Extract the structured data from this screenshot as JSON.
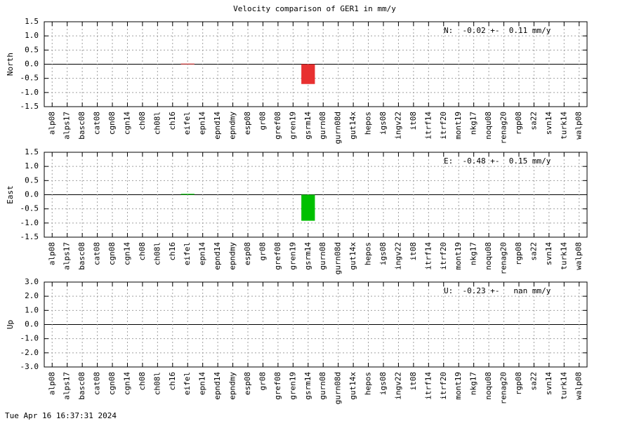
{
  "title": "Velocity comparison of GER1 in mm/y",
  "footer": "Tue Apr 16 16:37:31 2024",
  "chart_data": [
    {
      "type": "bar",
      "ylabel": "North",
      "annotation": "N:  -0.02 +-  0.11 mm/y",
      "categories": [
        "alp08",
        "alps17",
        "basc08",
        "cat08",
        "cgn08",
        "cgn14",
        "ch08",
        "ch08l",
        "ch16",
        "eifel",
        "epn14",
        "epnd14",
        "epndmy",
        "esp08",
        "gr08",
        "gref08",
        "gren19",
        "gsrm14",
        "gurn08",
        "gurn08d",
        "gut14x",
        "hepos",
        "igs08",
        "ingv22",
        "it08",
        "itrf14",
        "itrf20",
        "mont19",
        "nkg17",
        "noqu08",
        "renag20",
        "rgp08",
        "sa22",
        "svn14",
        "turk14",
        "walp08"
      ],
      "values": [
        null,
        null,
        null,
        null,
        null,
        null,
        null,
        null,
        null,
        0.02,
        null,
        null,
        null,
        null,
        null,
        null,
        null,
        -0.7,
        null,
        null,
        null,
        null,
        null,
        null,
        null,
        null,
        null,
        null,
        null,
        null,
        null,
        null,
        null,
        null,
        null,
        null
      ],
      "color": "#e83030",
      "ylim": [
        -1.5,
        1.5
      ],
      "yticks": [
        -1.5,
        {
          "value": -1,
          "label": "-1.0"
        },
        -0.5,
        {
          "value": 0,
          "label": "0.0"
        },
        0.5,
        {
          "value": 1,
          "label": "1.0"
        },
        1.5
      ],
      "grid": true
    },
    {
      "type": "bar",
      "ylabel": "East",
      "annotation": "E:  -0.48 +-  0.15 mm/y",
      "categories": [
        "alp08",
        "alps17",
        "basc08",
        "cat08",
        "cgn08",
        "cgn14",
        "ch08",
        "ch08l",
        "ch16",
        "eifel",
        "epn14",
        "epnd14",
        "epndmy",
        "esp08",
        "gr08",
        "gref08",
        "gren19",
        "gsrm14",
        "gurn08",
        "gurn08d",
        "gut14x",
        "hepos",
        "igs08",
        "ingv22",
        "it08",
        "itrf14",
        "itrf20",
        "mont19",
        "nkg17",
        "noqu08",
        "renag20",
        "rgp08",
        "sa22",
        "svn14",
        "turk14",
        "walp08"
      ],
      "values": [
        null,
        null,
        null,
        null,
        null,
        null,
        null,
        null,
        null,
        0.03,
        null,
        null,
        null,
        null,
        null,
        null,
        null,
        -0.92,
        null,
        null,
        null,
        null,
        null,
        null,
        null,
        null,
        null,
        null,
        null,
        null,
        null,
        null,
        null,
        null,
        null,
        null
      ],
      "color": "#00c000",
      "ylim": [
        -1.5,
        1.5
      ],
      "yticks": [
        -1.5,
        {
          "value": -1,
          "label": "-1.0"
        },
        -0.5,
        {
          "value": 0,
          "label": "0.0"
        },
        0.5,
        {
          "value": 1,
          "label": "1.0"
        },
        1.5
      ],
      "grid": true
    },
    {
      "type": "bar",
      "ylabel": "Up",
      "annotation": "U:  -0.23 +-   nan mm/y",
      "categories": [
        "alp08",
        "alps17",
        "basc08",
        "cat08",
        "cgn08",
        "cgn14",
        "ch08",
        "ch08l",
        "ch16",
        "eifel",
        "epn14",
        "epnd14",
        "epndmy",
        "esp08",
        "gr08",
        "gref08",
        "gren19",
        "gsrm14",
        "gurn08",
        "gurn08d",
        "gut14x",
        "hepos",
        "igs08",
        "ingv22",
        "it08",
        "itrf14",
        "itrf20",
        "mont19",
        "nkg17",
        "noqu08",
        "renag20",
        "rgp08",
        "sa22",
        "svn14",
        "turk14",
        "walp08"
      ],
      "values": [
        null,
        null,
        null,
        null,
        null,
        null,
        null,
        null,
        null,
        null,
        null,
        null,
        null,
        null,
        null,
        null,
        null,
        null,
        null,
        null,
        null,
        null,
        null,
        null,
        null,
        null,
        null,
        null,
        null,
        null,
        null,
        null,
        null,
        null,
        null,
        null
      ],
      "color": "#0000ff",
      "ylim": [
        -3,
        3
      ],
      "yticks": [
        {
          "value": -3,
          "label": "-3.0"
        },
        {
          "value": -2,
          "label": "-2.0"
        },
        {
          "value": -1,
          "label": "-1.0"
        },
        {
          "value": 0,
          "label": "0.0"
        },
        {
          "value": 1,
          "label": "1.0"
        },
        {
          "value": 2,
          "label": "2.0"
        },
        {
          "value": 3,
          "label": "3.0"
        }
      ],
      "grid": true
    }
  ]
}
